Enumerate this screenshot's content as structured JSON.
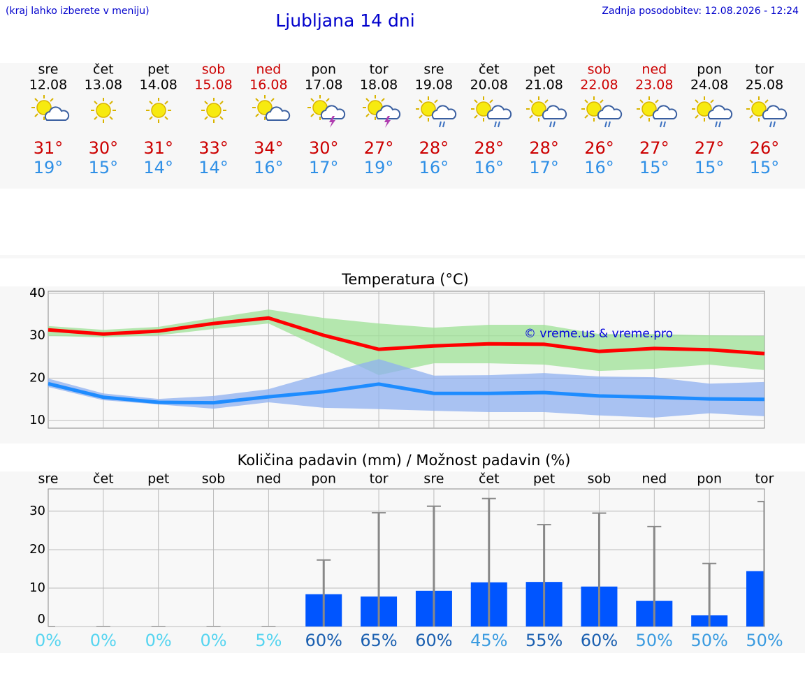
{
  "header": {
    "note": "(kraj lahko izberete v meniju)",
    "title": "Ljubljana 14 dni",
    "updated": "Zadnja posodobitev: 12.08.2026 - 12:24"
  },
  "forecast": {
    "days": [
      {
        "weekday": "sre",
        "date": "12.08",
        "color": "#000000",
        "high": "31°",
        "low": "19°"
      },
      {
        "weekday": "čet",
        "date": "13.08",
        "color": "#000000",
        "high": "30°",
        "low": "15°"
      },
      {
        "weekday": "pet",
        "date": "14.08",
        "color": "#000000",
        "high": "31°",
        "low": "14°"
      },
      {
        "weekday": "sob",
        "date": "15.08",
        "color": "#cc0000",
        "high": "33°",
        "low": "14°"
      },
      {
        "weekday": "ned",
        "date": "16.08",
        "color": "#cc0000",
        "high": "34°",
        "low": "16°"
      },
      {
        "weekday": "pon",
        "date": "17.08",
        "color": "#000000",
        "high": "30°",
        "low": "17°"
      },
      {
        "weekday": "tor",
        "date": "18.08",
        "color": "#000000",
        "high": "27°",
        "low": "19°"
      },
      {
        "weekday": "sre",
        "date": "19.08",
        "color": "#000000",
        "high": "28°",
        "low": "16°"
      },
      {
        "weekday": "čet",
        "date": "20.08",
        "color": "#000000",
        "high": "28°",
        "low": "16°"
      },
      {
        "weekday": "pet",
        "date": "21.08",
        "color": "#000000",
        "high": "28°",
        "low": "17°"
      },
      {
        "weekday": "sob",
        "date": "22.08",
        "color": "#cc0000",
        "high": "26°",
        "low": "16°"
      },
      {
        "weekday": "ned",
        "date": "23.08",
        "color": "#cc0000",
        "high": "27°",
        "low": "15°"
      },
      {
        "weekday": "pon",
        "date": "24.08",
        "color": "#000000",
        "high": "27°",
        "low": "15°"
      },
      {
        "weekday": "tor",
        "date": "25.08",
        "color": "#000000",
        "high": "26°",
        "low": "15°"
      }
    ]
  },
  "temperature": {
    "type": "line",
    "title": "Temperatura (°C)",
    "annotation": "© vreme.us & vreme.pro",
    "ylim": [
      8.2,
      40.5
    ],
    "yticks": [
      10,
      20,
      30,
      40
    ],
    "grid": true,
    "series": [
      {
        "color": "#ff0000",
        "band_color": "#9ee295",
        "values": [
          31.4,
          30.4,
          31.1,
          32.9,
          34.2,
          30.1,
          26.8,
          27.6,
          28.1,
          28.0,
          26.3,
          27.0,
          26.7,
          25.8
        ],
        "band_upper": [
          32.3,
          31.4,
          32.1,
          34.2,
          36.2,
          34.2,
          32.9,
          31.9,
          32.6,
          32.6,
          30.4,
          30.4,
          30.1,
          30.0
        ],
        "band_lower": [
          30.0,
          29.6,
          30.1,
          31.6,
          32.9,
          26.8,
          20.7,
          23.5,
          23.5,
          23.2,
          21.7,
          22.2,
          23.2,
          21.9
        ]
      },
      {
        "color": "#1e8cff",
        "band_color": "#8fb0f0",
        "values": [
          18.7,
          15.5,
          14.3,
          14.2,
          15.6,
          16.8,
          18.6,
          16.4,
          16.4,
          16.6,
          15.8,
          15.5,
          15.1,
          15.0
        ],
        "band_upper": [
          19.9,
          16.4,
          15.1,
          15.8,
          17.4,
          21.1,
          24.5,
          20.6,
          20.7,
          21.2,
          20.4,
          20.2,
          18.7,
          19.1
        ],
        "band_lower": [
          17.9,
          14.8,
          13.8,
          12.8,
          14.3,
          13.0,
          12.7,
          12.3,
          12.0,
          12.0,
          11.2,
          10.7,
          11.7,
          11.0
        ]
      }
    ]
  },
  "precipitation": {
    "type": "bar",
    "title": "Količina padavin (mm) / Možnost padavin (%)",
    "ylim": [
      0,
      35.8
    ],
    "yticks": [
      0,
      10,
      20,
      30
    ],
    "grid": true,
    "color": "#0055ff",
    "whisker_color": "#888888",
    "values": [
      0,
      0,
      0,
      0,
      0,
      8.4,
      7.8,
      9.3,
      11.5,
      11.6,
      10.4,
      6.7,
      2.9,
      14.4
    ],
    "max": [
      0,
      0,
      0,
      0,
      0,
      17.3,
      29.6,
      31.3,
      33.3,
      26.5,
      29.5,
      26.0,
      16.4,
      32.5
    ],
    "probability": [
      0,
      0,
      0,
      0,
      5,
      60,
      65,
      60,
      45,
      55,
      60,
      50,
      50,
      50
    ],
    "probability_labels": [
      "0%",
      "0%",
      "0%",
      "0%",
      "5%",
      "60%",
      "65%",
      "60%",
      "45%",
      "55%",
      "60%",
      "50%",
      "50%",
      "50%"
    ]
  }
}
